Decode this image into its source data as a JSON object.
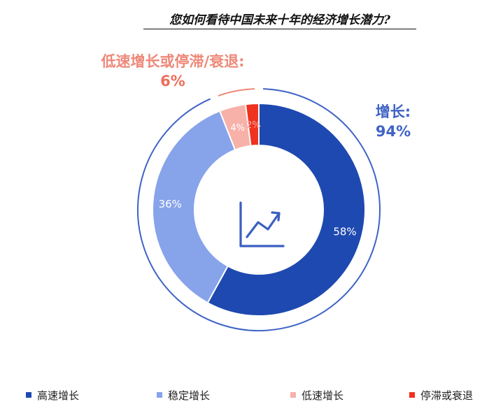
{
  "chart_data": {
    "type": "pie",
    "title": "您如何看待中国未来十年的经济增长潜力?",
    "categories": [
      "高速增长",
      "稳定增长",
      "低速增长",
      "停滞或衰退"
    ],
    "values": [
      58,
      36,
      4,
      2
    ],
    "data_labels": [
      "58%",
      "36%",
      "4%",
      "2%"
    ],
    "colors": [
      "#1e49b0",
      "#87a3ea",
      "#f7b1a9",
      "#f0321e"
    ],
    "groups": [
      {
        "label": "增长:",
        "value_label": "94%",
        "color": "#3f63c6"
      },
      {
        "label": "低速增长或停滞/衰退:",
        "value_label": "6%",
        "color": "#ee8878"
      }
    ],
    "legend_position": "bottom",
    "center_icon": "trend-up-chart-icon"
  }
}
